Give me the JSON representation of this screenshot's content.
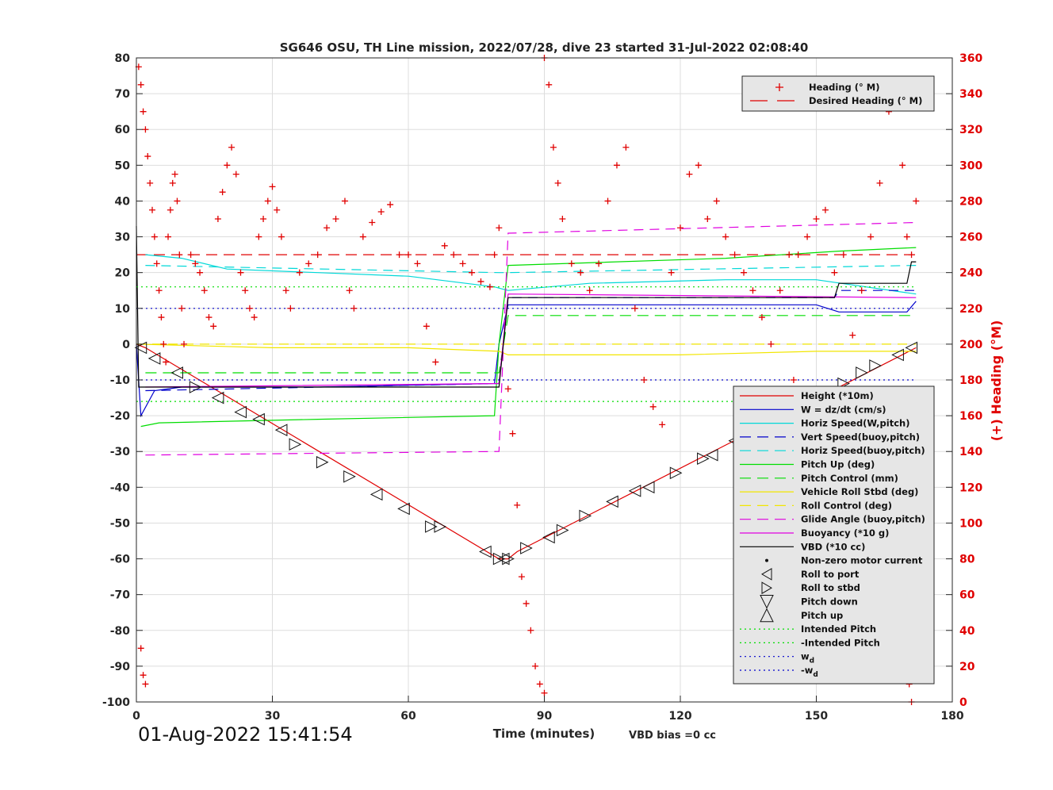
{
  "chart_data": {
    "type": "line",
    "title": "SG646 OSU, TH Line mission, 2022/07/28, dive 23 started 31-Jul-2022 02:08:40",
    "xlabel": "Time (minutes)",
    "ylabel": "",
    "ylabel_right": "(+) Heading (°M)",
    "xlim": [
      0,
      180
    ],
    "ylim": [
      -100,
      80
    ],
    "ylim_right": [
      0,
      360
    ],
    "xticks": [
      "0",
      "30",
      "60",
      "90",
      "120",
      "150",
      "180"
    ],
    "yticks": [
      "-100",
      "-90",
      "-80",
      "-70",
      "-60",
      "-50",
      "-40",
      "-30",
      "-20",
      "-10",
      "0",
      "10",
      "20",
      "30",
      "40",
      "50",
      "60",
      "70",
      "80"
    ],
    "yticks_right": [
      "0",
      "20",
      "40",
      "60",
      "80",
      "100",
      "120",
      "140",
      "160",
      "180",
      "200",
      "220",
      "240",
      "260",
      "280",
      "300",
      "320",
      "340",
      "360"
    ],
    "grid": true,
    "timestamp": "01-Aug-2022 15:41:54",
    "vbd_note": "VBD bias =0 cc",
    "legend_top": [
      {
        "label": "Heading (° M)",
        "color": "#e00000",
        "style": "plus"
      },
      {
        "label": "Desired Heading (° M)",
        "color": "#e00000",
        "style": "dash"
      }
    ],
    "legend_main": [
      {
        "label": "Height (*10m)",
        "color": "#e00000",
        "style": "solid"
      },
      {
        "label": "W = dz/dt (cm/s)",
        "color": "#0000cc",
        "style": "solid"
      },
      {
        "label": "Horiz Speed(W,pitch)",
        "color": "#00d8d8",
        "style": "solid"
      },
      {
        "label": "Vert Speed(buoy,pitch)",
        "color": "#0000cc",
        "style": "dash"
      },
      {
        "label": "Horiz Speed(buoy,pitch)",
        "color": "#00d8d8",
        "style": "dash"
      },
      {
        "label": "Pitch Up (deg)",
        "color": "#00dd00",
        "style": "solid"
      },
      {
        "label": "Pitch Control (mm)",
        "color": "#00dd00",
        "style": "dash"
      },
      {
        "label": "Vehicle Roll Stbd (deg)",
        "color": "#f2e600",
        "style": "solid"
      },
      {
        "label": "Roll Control (deg)",
        "color": "#f2e600",
        "style": "dash"
      },
      {
        "label": "Glide Angle (buoy,pitch)",
        "color": "#e000e0",
        "style": "dash"
      },
      {
        "label": "Buoyancy (*10 g)",
        "color": "#e000e0",
        "style": "solid"
      },
      {
        "label": "VBD (*10 cc)",
        "color": "#000000",
        "style": "solid"
      },
      {
        "label": "Non-zero motor current",
        "color": "#000000",
        "style": "dot"
      },
      {
        "label": "Roll to port",
        "color": "#000000",
        "style": "tri-left"
      },
      {
        "label": "Roll to stbd",
        "color": "#000000",
        "style": "tri-right"
      },
      {
        "label": "Pitch down",
        "color": "#000000",
        "style": "tri-down"
      },
      {
        "label": "Pitch up",
        "color": "#000000",
        "style": "tri-up"
      },
      {
        "label": "Intended Pitch",
        "color": "#00dd00",
        "style": "dotted"
      },
      {
        "label": "-Intended Pitch",
        "color": "#00dd00",
        "style": "dotted"
      },
      {
        "label": "w",
        "sub": "d",
        "color": "#0000cc",
        "style": "dotted"
      },
      {
        "label": "-w",
        "sub": "d",
        "color": "#0000cc",
        "style": "dotted"
      }
    ],
    "series": [
      {
        "name": "Height (*10m)",
        "color": "#e00000",
        "x": [
          0,
          2,
          80,
          82,
          84,
          172
        ],
        "y": [
          0,
          -1,
          -60,
          -60,
          -58,
          -1
        ]
      },
      {
        "name": "W = dz/dt (cm/s)",
        "color": "#0000cc",
        "x": [
          0,
          1,
          4,
          10,
          40,
          79,
          80,
          82,
          110,
          150,
          155,
          170,
          172
        ],
        "y": [
          0,
          -20,
          -13,
          -12,
          -12,
          -11,
          0,
          11,
          11,
          11,
          9,
          9,
          12
        ]
      },
      {
        "name": "Horiz Speed(W,pitch)",
        "color": "#00d8d8",
        "x": [
          2,
          10,
          20,
          40,
          60,
          79,
          82,
          100,
          130,
          150,
          172
        ],
        "y": [
          25,
          24,
          21,
          20,
          19,
          16,
          15,
          17,
          18,
          18,
          14
        ]
      },
      {
        "name": "Vert Speed(buoy,pitch)",
        "color": "#0000cc",
        "x": [
          2,
          80,
          82,
          154,
          155,
          172
        ],
        "y": [
          -13,
          -11,
          13,
          13,
          15,
          15
        ]
      },
      {
        "name": "Horiz Speed(buoy,pitch)",
        "color": "#00d8d8",
        "x": [
          2,
          80,
          82,
          172
        ],
        "y": [
          22,
          20,
          20,
          22
        ]
      },
      {
        "name": "Pitch Up (deg)",
        "color": "#00dd00",
        "x": [
          1,
          5,
          40,
          79,
          80,
          82,
          130,
          155,
          172
        ],
        "y": [
          -23,
          -22,
          -21,
          -20,
          0,
          22,
          24,
          26,
          27
        ]
      },
      {
        "name": "Pitch Control (mm)",
        "color": "#00dd00",
        "x": [
          2,
          80,
          82,
          172
        ],
        "y": [
          -8,
          -8,
          8,
          8
        ]
      },
      {
        "name": "Vehicle Roll Stbd (deg)",
        "color": "#f2e600",
        "x": [
          0,
          30,
          60,
          80,
          82,
          120,
          150,
          172
        ],
        "y": [
          0,
          -1,
          -1,
          -2,
          -3,
          -3,
          -2,
          -2
        ]
      },
      {
        "name": "Roll Control (deg)",
        "color": "#f2e600",
        "x": [
          0,
          172
        ],
        "y": [
          0,
          0
        ]
      },
      {
        "name": "Glide Angle (buoy,pitch)",
        "color": "#e000e0",
        "x": [
          2,
          80,
          82,
          172
        ],
        "y": [
          -31,
          -30,
          31,
          34
        ]
      },
      {
        "name": "Buoyancy (*10 g)",
        "color": "#e000e0",
        "x": [
          2,
          80,
          82,
          172
        ],
        "y": [
          -12,
          -11,
          14,
          13
        ]
      },
      {
        "name": "VBD (*10 cc)",
        "color": "#000000",
        "x": [
          0,
          0.5,
          80,
          82,
          154,
          155,
          170,
          171,
          172
        ],
        "y": [
          33,
          -12,
          -12,
          13,
          13,
          17,
          17,
          23,
          23
        ]
      },
      {
        "name": "Intended Pitch",
        "color": "#00dd00",
        "x": [
          0,
          172
        ],
        "y": [
          16,
          16
        ]
      },
      {
        "name": "-Intended Pitch",
        "color": "#00dd00",
        "x": [
          0,
          172
        ],
        "y": [
          -16,
          -16
        ]
      },
      {
        "name": "wd",
        "color": "#0000cc",
        "x": [
          0,
          172
        ],
        "y": [
          10,
          10
        ]
      },
      {
        "name": "-wd",
        "color": "#0000cc",
        "x": [
          0,
          172
        ],
        "y": [
          -10,
          -10
        ]
      }
    ],
    "desired_heading": 250,
    "heading_points": [
      [
        0.5,
        355
      ],
      [
        1,
        345
      ],
      [
        1.5,
        330
      ],
      [
        2,
        320
      ],
      [
        2.5,
        305
      ],
      [
        3,
        290
      ],
      [
        3.5,
        275
      ],
      [
        4,
        260
      ],
      [
        4.5,
        245
      ],
      [
        5,
        230
      ],
      [
        5.5,
        215
      ],
      [
        6,
        200
      ],
      [
        6.5,
        190
      ],
      [
        7,
        260
      ],
      [
        7.5,
        275
      ],
      [
        8,
        290
      ],
      [
        8.5,
        295
      ],
      [
        9,
        280
      ],
      [
        9.5,
        250
      ],
      [
        10,
        220
      ],
      [
        10.5,
        200
      ],
      [
        12,
        250
      ],
      [
        13,
        245
      ],
      [
        14,
        240
      ],
      [
        15,
        230
      ],
      [
        16,
        215
      ],
      [
        17,
        210
      ],
      [
        18,
        270
      ],
      [
        19,
        285
      ],
      [
        20,
        300
      ],
      [
        21,
        310
      ],
      [
        22,
        295
      ],
      [
        23,
        240
      ],
      [
        24,
        230
      ],
      [
        25,
        220
      ],
      [
        26,
        215
      ],
      [
        27,
        260
      ],
      [
        28,
        270
      ],
      [
        29,
        280
      ],
      [
        30,
        288
      ],
      [
        31,
        275
      ],
      [
        32,
        260
      ],
      [
        33,
        230
      ],
      [
        34,
        220
      ],
      [
        36,
        240
      ],
      [
        38,
        245
      ],
      [
        40,
        250
      ],
      [
        42,
        265
      ],
      [
        44,
        270
      ],
      [
        46,
        280
      ],
      [
        47,
        230
      ],
      [
        48,
        220
      ],
      [
        50,
        260
      ],
      [
        52,
        268
      ],
      [
        54,
        274
      ],
      [
        56,
        278
      ],
      [
        58,
        250
      ],
      [
        60,
        250
      ],
      [
        62,
        245
      ],
      [
        64,
        210
      ],
      [
        66,
        190
      ],
      [
        68,
        255
      ],
      [
        70,
        250
      ],
      [
        72,
        245
      ],
      [
        74,
        240
      ],
      [
        76,
        235
      ],
      [
        78,
        232
      ],
      [
        79,
        250
      ],
      [
        80,
        265
      ],
      [
        82,
        175
      ],
      [
        83,
        150
      ],
      [
        84,
        110
      ],
      [
        85,
        70
      ],
      [
        86,
        55
      ],
      [
        87,
        40
      ],
      [
        88,
        20
      ],
      [
        89,
        10
      ],
      [
        90,
        5
      ],
      [
        90,
        360
      ],
      [
        91,
        345
      ],
      [
        92,
        310
      ],
      [
        93,
        290
      ],
      [
        94,
        270
      ],
      [
        96,
        245
      ],
      [
        98,
        240
      ],
      [
        100,
        230
      ],
      [
        102,
        245
      ],
      [
        104,
        280
      ],
      [
        106,
        300
      ],
      [
        108,
        310
      ],
      [
        110,
        220
      ],
      [
        112,
        180
      ],
      [
        114,
        165
      ],
      [
        116,
        155
      ],
      [
        118,
        240
      ],
      [
        120,
        265
      ],
      [
        122,
        295
      ],
      [
        124,
        300
      ],
      [
        126,
        270
      ],
      [
        128,
        280
      ],
      [
        130,
        260
      ],
      [
        132,
        250
      ],
      [
        134,
        240
      ],
      [
        136,
        230
      ],
      [
        138,
        215
      ],
      [
        140,
        200
      ],
      [
        142,
        230
      ],
      [
        144,
        250
      ],
      [
        145,
        180
      ],
      [
        146,
        250
      ],
      [
        148,
        260
      ],
      [
        150,
        270
      ],
      [
        152,
        275
      ],
      [
        154,
        240
      ],
      [
        156,
        250
      ],
      [
        158,
        205
      ],
      [
        160,
        230
      ],
      [
        162,
        260
      ],
      [
        164,
        290
      ],
      [
        166,
        330
      ],
      [
        168,
        345
      ],
      [
        169,
        300
      ],
      [
        170,
        260
      ],
      [
        171,
        250
      ],
      [
        172,
        280
      ],
      [
        1,
        30
      ],
      [
        1.5,
        15
      ],
      [
        2,
        10
      ],
      [
        170,
        25
      ],
      [
        170.5,
        10
      ],
      [
        171,
        0
      ]
    ],
    "dive_markers": [
      {
        "x": 1,
        "y": -1,
        "k": "L"
      },
      {
        "x": 4,
        "y": -4,
        "k": "L"
      },
      {
        "x": 9,
        "y": -8,
        "k": "L"
      },
      {
        "x": 13,
        "y": -12,
        "k": "R"
      },
      {
        "x": 18,
        "y": -15,
        "k": "L"
      },
      {
        "x": 23,
        "y": -19,
        "k": "L"
      },
      {
        "x": 27,
        "y": -21,
        "k": "L"
      },
      {
        "x": 32,
        "y": -24,
        "k": "L"
      },
      {
        "x": 35,
        "y": -28,
        "k": "R"
      },
      {
        "x": 41,
        "y": -33,
        "k": "R"
      },
      {
        "x": 47,
        "y": -37,
        "k": "R"
      },
      {
        "x": 53,
        "y": -42,
        "k": "L"
      },
      {
        "x": 59,
        "y": -46,
        "k": "L"
      },
      {
        "x": 65,
        "y": -51,
        "k": "R"
      },
      {
        "x": 67,
        "y": -51,
        "k": "R"
      },
      {
        "x": 77,
        "y": -58,
        "k": "L"
      },
      {
        "x": 80,
        "y": -60,
        "k": "R"
      },
      {
        "x": 81,
        "y": -60,
        "k": "L"
      },
      {
        "x": 82,
        "y": -60,
        "k": "R"
      },
      {
        "x": 86,
        "y": -57,
        "k": "R"
      },
      {
        "x": 91,
        "y": -54,
        "k": "L"
      },
      {
        "x": 94,
        "y": -52,
        "k": "R"
      },
      {
        "x": 99,
        "y": -48,
        "k": "R"
      },
      {
        "x": 105,
        "y": -44,
        "k": "L"
      },
      {
        "x": 110,
        "y": -41,
        "k": "L"
      },
      {
        "x": 113,
        "y": -40,
        "k": "L"
      },
      {
        "x": 119,
        "y": -36,
        "k": "R"
      },
      {
        "x": 125,
        "y": -32,
        "k": "R"
      },
      {
        "x": 127,
        "y": -31,
        "k": "L"
      },
      {
        "x": 132,
        "y": -27,
        "k": "L"
      },
      {
        "x": 137,
        "y": -23,
        "k": "L"
      },
      {
        "x": 141,
        "y": -20,
        "k": "L"
      },
      {
        "x": 147,
        "y": -17,
        "k": "R"
      },
      {
        "x": 152,
        "y": -14,
        "k": "R"
      },
      {
        "x": 156,
        "y": -11,
        "k": "R"
      },
      {
        "x": 160,
        "y": -8,
        "k": "R"
      },
      {
        "x": 163,
        "y": -6,
        "k": "R"
      },
      {
        "x": 168,
        "y": -3,
        "k": "L"
      },
      {
        "x": 171,
        "y": -1,
        "k": "L"
      }
    ]
  }
}
